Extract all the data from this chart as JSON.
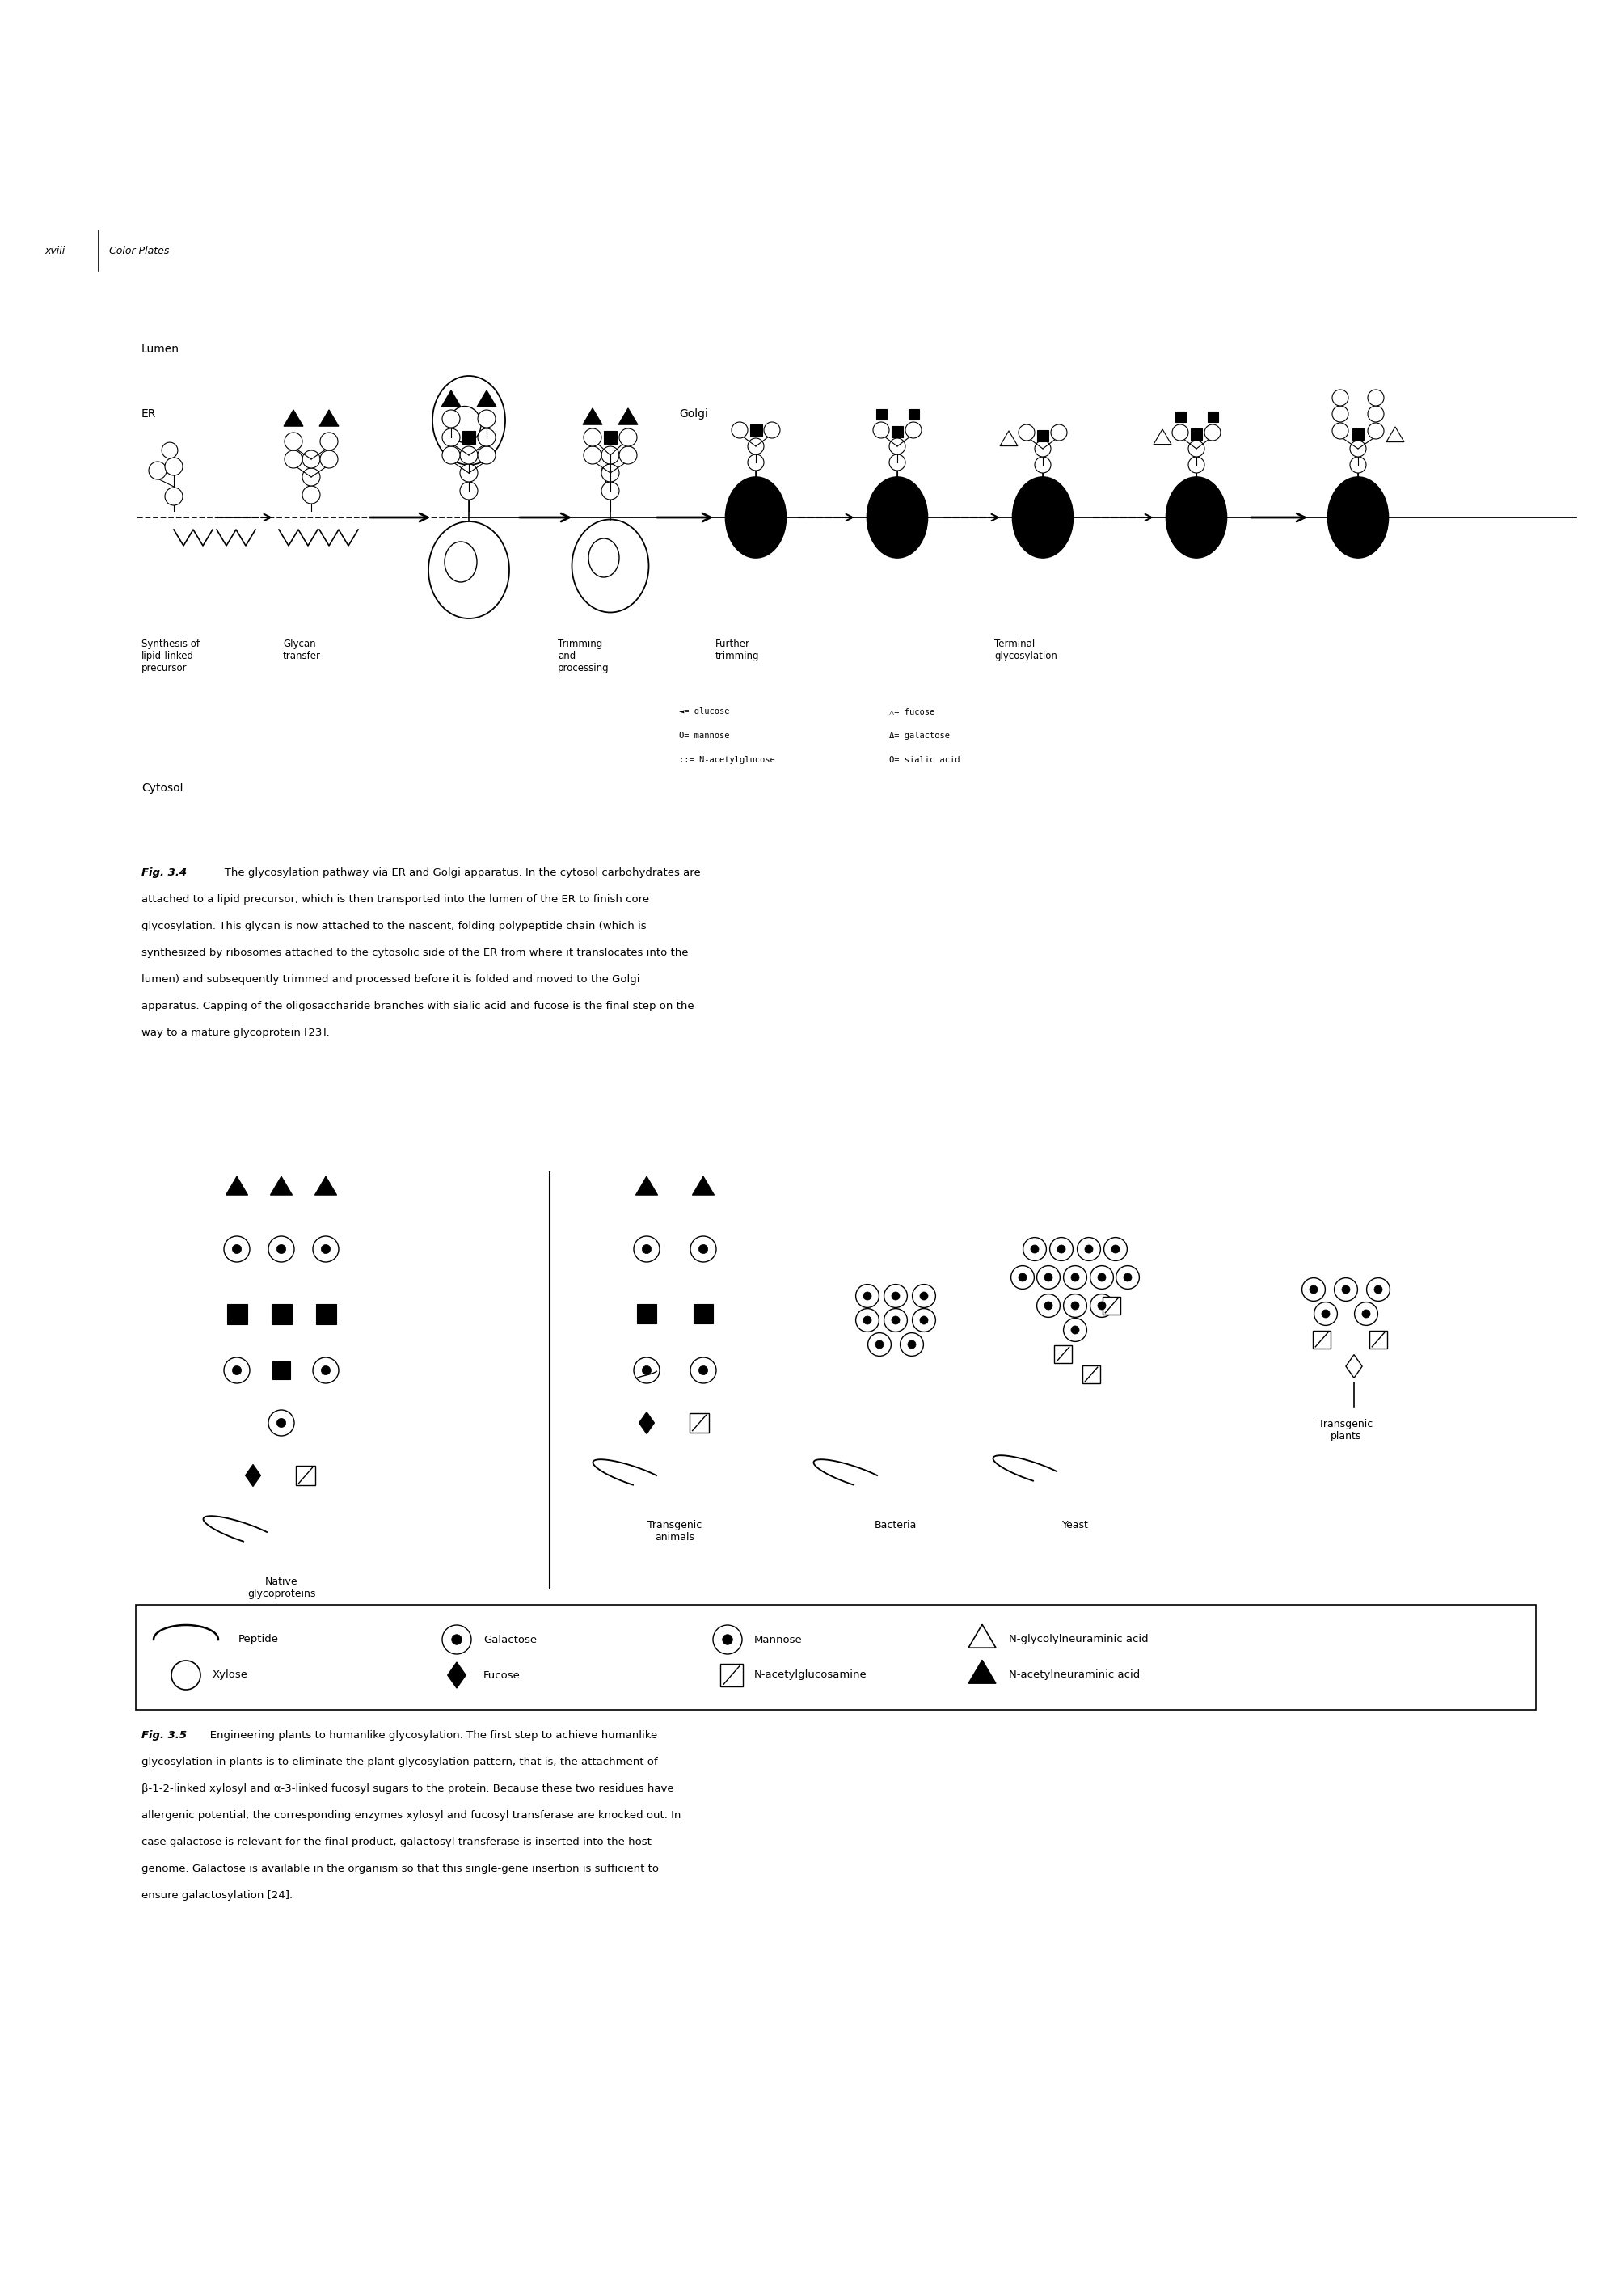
{
  "page_width": 20.09,
  "page_height": 28.35,
  "bg_color": "#ffffff",
  "header_text": "xviii",
  "header_subtext": "Color Plates",
  "lumen_label": "Lumen",
  "er_label": "ER",
  "golgi_label": "Golgi",
  "cytosol_label": "Cytosol",
  "stage_labels": [
    "Synthesis of\nlipid-linked\nprecursor",
    "Glycan\ntransfer",
    "Trimming\nand\nprocessing",
    "Further\ntrimming",
    "Terminal\nglycosylation"
  ],
  "native_label": "Native\nglycoproteins",
  "transgenic_animals_label": "Transgenic\nanimals",
  "bacteria_label": "Bacteria",
  "yeast_label": "Yeast",
  "transgenic_plants_label": "Transgenic\nplants",
  "fig34_lines": [
    "Fig. 3.4   The glycosylation pathway via ER and Golgi apparatus. In the cytosol carbohydrates are",
    "attached to a lipid precursor, which is then transported into the lumen of the ER to finish core",
    "glycosylation. This glycan is now attached to the nascent, folding polypeptide chain (which is",
    "synthesized by ribosomes attached to the cytosolic side of the ER from where it translocates into the",
    "lumen) and subsequently trimmed and processed before it is folded and moved to the Golgi",
    "apparatus. Capping of the oligosaccharide branches with sialic acid and fucose is the final step on the",
    "way to a mature glycoprotein [23]."
  ],
  "fig35_lines": [
    "Fig. 3.5   Engineering plants to humanlike glycosylation. The first step to achieve humanlike",
    "glycosylation in plants is to eliminate the plant glycosylation pattern, that is, the attachment of",
    "β-1-2-linked xylosyl and α-3-linked fucosyl sugars to the protein. Because these two residues have",
    "allergenic potential, the corresponding enzymes xylosyl and fucosyl transferase are knocked out. In",
    "case galactose is relevant for the final product, galactosyl transferase is inserted into the host",
    "genome. Galactose is available in the organism so that this single-gene insertion is sufficient to",
    "ensure galactosylation [24]."
  ]
}
